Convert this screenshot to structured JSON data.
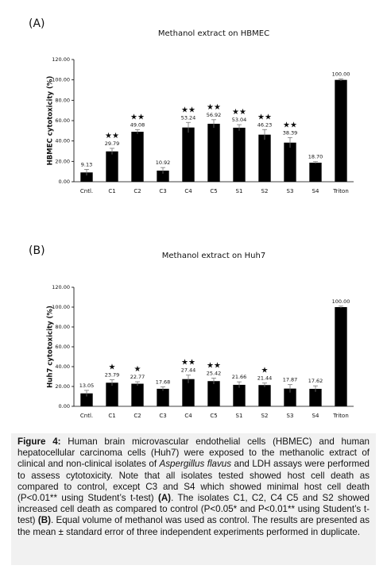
{
  "chart_data": [
    {
      "type": "bar",
      "panel_label": "(A)",
      "title": "Methanol extract on HBMEC",
      "y_label": "HBMEC  cytotoxicity (%)",
      "categories": [
        "Cntl.",
        "C1",
        "C2",
        "C3",
        "C4",
        "C5",
        "S1",
        "S2",
        "S3",
        "S4",
        "Triton"
      ],
      "values": [
        9.13,
        29.79,
        49.08,
        10.92,
        53.24,
        56.92,
        53.04,
        46.23,
        38.39,
        18.7,
        100.0
      ],
      "value_labels": [
        "9.13",
        "29.79",
        "49.08",
        "10.92",
        "53.24",
        "56.92",
        "53.04",
        "46.23",
        "38.39",
        "18.70",
        "100.00"
      ],
      "errors": [
        3,
        3,
        2,
        3,
        5,
        4,
        3,
        5,
        5,
        1,
        1
      ],
      "annotations": [
        null,
        "★★",
        "★★",
        null,
        "★★",
        "★★",
        "★★",
        "★★",
        "★★",
        null,
        null
      ],
      "color": "#000000",
      "ylim": [
        0,
        120
      ],
      "yticks": [
        {
          "value": 0,
          "label": "0.00"
        },
        {
          "value": 20,
          "label": "20.00"
        },
        {
          "value": 40,
          "label": "40.00"
        },
        {
          "value": 60,
          "label": "60.00"
        },
        {
          "value": 80,
          "label": "80.00"
        },
        {
          "value": 100,
          "label": "100.00"
        },
        {
          "value": 120,
          "label": "120.00"
        }
      ]
    },
    {
      "type": "bar",
      "panel_label": "(B)",
      "title": "Methanol extract on Huh7",
      "y_label": "Huh7  cytotoxicity (%)",
      "categories": [
        "Cntl.",
        "C1",
        "C2",
        "C3",
        "C4",
        "C5",
        "S1",
        "S2",
        "S3",
        "S4",
        "Triton"
      ],
      "values": [
        13.05,
        23.79,
        22.77,
        17.68,
        27.44,
        25.42,
        21.66,
        21.44,
        17.87,
        17.62,
        100.0
      ],
      "value_labels": [
        "13.05",
        "23.79",
        "22.77",
        "17.68",
        "27.44",
        "25.42",
        "21.66",
        "21.44",
        "17.87",
        "17.62",
        "100.00"
      ],
      "errors": [
        3,
        3,
        2,
        2,
        4,
        3,
        3,
        2,
        4,
        3,
        1
      ],
      "annotations": [
        null,
        "★",
        "★",
        null,
        "★★",
        "★★",
        null,
        "★",
        null,
        null,
        null
      ],
      "color": "#000000",
      "ylim": [
        0,
        120
      ],
      "yticks": [
        {
          "value": 0,
          "label": "0.00"
        },
        {
          "value": 20,
          "label": "20.00"
        },
        {
          "value": 40,
          "label": "40.00"
        },
        {
          "value": 60,
          "label": "60.00"
        },
        {
          "value": 80,
          "label": "80.00"
        },
        {
          "value": 100,
          "label": "100.00"
        },
        {
          "value": 120,
          "label": "120.00"
        }
      ]
    }
  ],
  "caption": [
    "Figure 4:",
    " Human brain microvascular endothelial cells (HBMEC) and human hepatocellular carcinoma cells (Huh7) were exposed to the methanolic extract of clinical and non-clinical isolates of ",
    "Aspergillus flavus",
    " and LDH assays were performed to assess cytotoxicity. Note that all isolates tested showed host cell death as compared to control, except C3 and S4 which showed minimal host cell death (P<0.01** using Student’s t-test) ",
    "(A)",
    ". The isolates C1, C2, C4 C5 and S2 showed increased cell death as compared to control (P<0.05* and P<0.01** using Student’s t-test) ",
    "(B)",
    ". Equal volume of methanol was used as control. The results are presented as the mean ± standard error of three independent experiments performed in duplicate."
  ]
}
